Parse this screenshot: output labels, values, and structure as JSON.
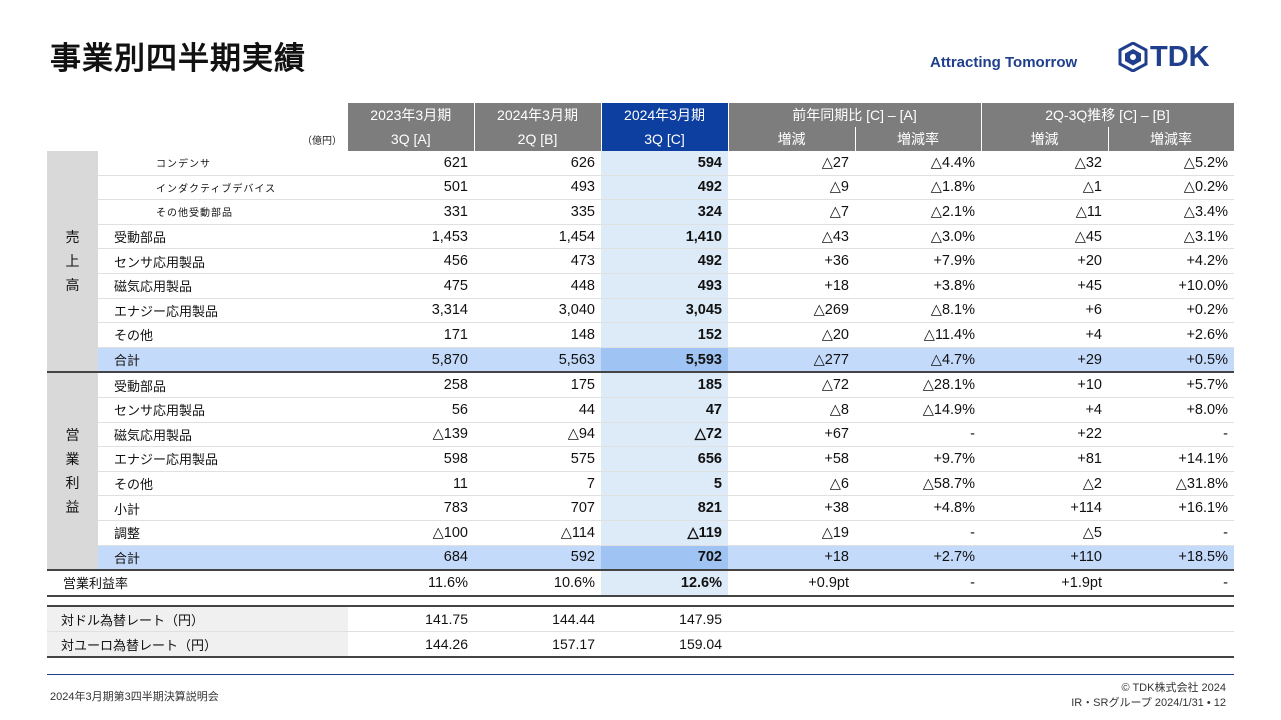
{
  "title": "事業別四半期実績",
  "tagline": "Attracting Tomorrow",
  "logo_text": "TDK",
  "unit": "（億円）",
  "header": {
    "periods": [
      "2023年3月期",
      "2024年3月期",
      "2024年3月期"
    ],
    "yoy": "前年同期比 [C] – [A]",
    "qoq": "2Q-3Q推移 [C] – [B]",
    "quarters": [
      "3Q [A]",
      "2Q [B]",
      "3Q [C]"
    ],
    "change": "増減",
    "change_rate": "増減率"
  },
  "sales_group": [
    "売",
    "上",
    "高"
  ],
  "op_group": [
    "営",
    "業",
    "利",
    "益"
  ],
  "sales_rows": [
    {
      "label": "コンデンサ",
      "a": "621",
      "b": "626",
      "c": "594",
      "yoy": "△27",
      "yoy_rate": "△4.4%",
      "qoq": "△32",
      "qoq_rate": "△5.2%"
    },
    {
      "label": "インダクティブデバイス",
      "a": "501",
      "b": "493",
      "c": "492",
      "yoy": "△9",
      "yoy_rate": "△1.8%",
      "qoq": "△1",
      "qoq_rate": "△0.2%"
    },
    {
      "label": "その他受動部品",
      "a": "331",
      "b": "335",
      "c": "324",
      "yoy": "△7",
      "yoy_rate": "△2.1%",
      "qoq": "△11",
      "qoq_rate": "△3.4%"
    },
    {
      "label": "受動部品",
      "a": "1,453",
      "b": "1,454",
      "c": "1,410",
      "yoy": "△43",
      "yoy_rate": "△3.0%",
      "qoq": "△45",
      "qoq_rate": "△3.1%"
    },
    {
      "label": "センサ応用製品",
      "a": "456",
      "b": "473",
      "c": "492",
      "yoy": "+36",
      "yoy_rate": "+7.9%",
      "qoq": "+20",
      "qoq_rate": "+4.2%"
    },
    {
      "label": "磁気応用製品",
      "a": "475",
      "b": "448",
      "c": "493",
      "yoy": "+18",
      "yoy_rate": "+3.8%",
      "qoq": "+45",
      "qoq_rate": "+10.0%"
    },
    {
      "label": "エナジー応用製品",
      "a": "3,314",
      "b": "3,040",
      "c": "3,045",
      "yoy": "△269",
      "yoy_rate": "△8.1%",
      "qoq": "+6",
      "qoq_rate": "+0.2%"
    },
    {
      "label": "その他",
      "a": "171",
      "b": "148",
      "c": "152",
      "yoy": "△20",
      "yoy_rate": "△11.4%",
      "qoq": "+4",
      "qoq_rate": "+2.6%"
    },
    {
      "label": "合計",
      "a": "5,870",
      "b": "5,563",
      "c": "5,593",
      "yoy": "△277",
      "yoy_rate": "△4.7%",
      "qoq": "+29",
      "qoq_rate": "+0.5%"
    }
  ],
  "op_rows": [
    {
      "label": "受動部品",
      "a": "258",
      "b": "175",
      "c": "185",
      "yoy": "△72",
      "yoy_rate": "△28.1%",
      "qoq": "+10",
      "qoq_rate": "+5.7%"
    },
    {
      "label": "センサ応用製品",
      "a": "56",
      "b": "44",
      "c": "47",
      "yoy": "△8",
      "yoy_rate": "△14.9%",
      "qoq": "+4",
      "qoq_rate": "+8.0%"
    },
    {
      "label": "磁気応用製品",
      "a": "△139",
      "b": "△94",
      "c": "△72",
      "yoy": "+67",
      "yoy_rate": "-",
      "qoq": "+22",
      "qoq_rate": "-"
    },
    {
      "label": "エナジー応用製品",
      "a": "598",
      "b": "575",
      "c": "656",
      "yoy": "+58",
      "yoy_rate": "+9.7%",
      "qoq": "+81",
      "qoq_rate": "+14.1%"
    },
    {
      "label": "その他",
      "a": "11",
      "b": "7",
      "c": "5",
      "yoy": "△6",
      "yoy_rate": "△58.7%",
      "qoq": "△2",
      "qoq_rate": "△31.8%"
    },
    {
      "label": "小計",
      "a": "783",
      "b": "707",
      "c": "821",
      "yoy": "+38",
      "yoy_rate": "+4.8%",
      "qoq": "+114",
      "qoq_rate": "+16.1%"
    },
    {
      "label": "調整",
      "a": "△100",
      "b": "△114",
      "c": "△119",
      "yoy": "△19",
      "yoy_rate": "-",
      "qoq": "△5",
      "qoq_rate": "-"
    },
    {
      "label": "合計",
      "a": "684",
      "b": "592",
      "c": "702",
      "yoy": "+18",
      "yoy_rate": "+2.7%",
      "qoq": "+110",
      "qoq_rate": "+18.5%"
    }
  ],
  "margin_row": {
    "label": "営業利益率",
    "a": "11.6%",
    "b": "10.6%",
    "c": "12.6%",
    "yoy": "+0.9pt",
    "yoy_rate": "-",
    "qoq": "+1.9pt",
    "qoq_rate": "-"
  },
  "fx_rows": [
    {
      "label": "対ドル為替レート（円）",
      "a": "141.75",
      "b": "144.44",
      "c": "147.95"
    },
    {
      "label": "対ユーロ為替レート（円）",
      "a": "144.26",
      "b": "157.17",
      "c": "159.04"
    }
  ],
  "footer": {
    "left": "2024年3月期第3四半期決算説明会",
    "copyright": "© TDK株式会社 2024",
    "dept": "IR・SRグループ  2024/1/31 • 12"
  }
}
